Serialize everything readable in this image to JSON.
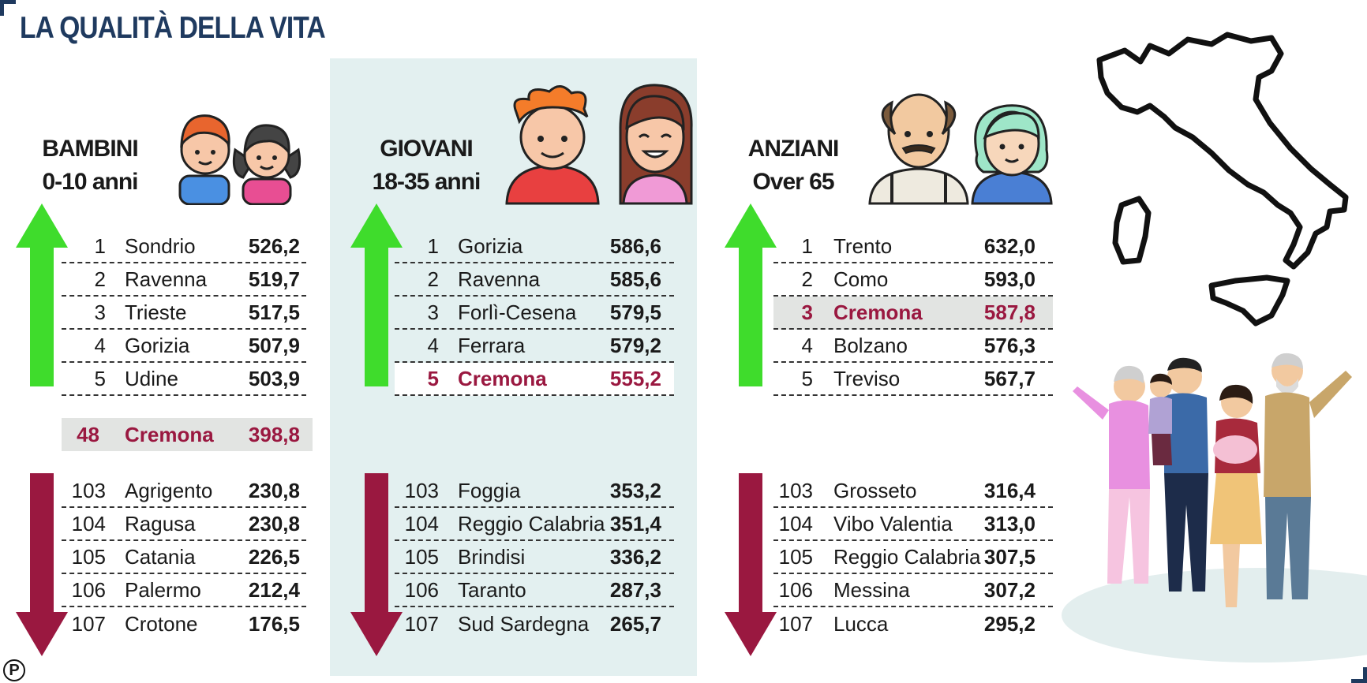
{
  "title": "LA QUALITÀ DELLA VITA",
  "colors": {
    "up_arrow": "#3fdc2c",
    "down_arrow": "#9a1840",
    "highlight_text": "#9a1840",
    "title": "#1f3a5f",
    "panel_bg": "#e3f0f0"
  },
  "icons": [
    "children-icon",
    "young-people-icon",
    "elderly-icon",
    "italy-map-icon",
    "family-illustration",
    "publisher-logo-icon"
  ],
  "sections": [
    {
      "title_line1": "BAMBINI",
      "title_line2": "0-10 anni",
      "top": [
        {
          "rank": "1",
          "city": "Sondrio",
          "value": "526,2"
        },
        {
          "rank": "2",
          "city": "Ravenna",
          "value": "519,7"
        },
        {
          "rank": "3",
          "city": "Trieste",
          "value": "517,5"
        },
        {
          "rank": "4",
          "city": "Gorizia",
          "value": "507,9"
        },
        {
          "rank": "5",
          "city": "Udine",
          "value": "503,9"
        }
      ],
      "cremona": {
        "rank": "48",
        "city": "Cremona",
        "value": "398,8"
      },
      "bottom": [
        {
          "rank": "103",
          "city": "Agrigento",
          "value": "230,8"
        },
        {
          "rank": "104",
          "city": "Ragusa",
          "value": "230,8"
        },
        {
          "rank": "105",
          "city": "Catania",
          "value": "226,5"
        },
        {
          "rank": "106",
          "city": "Palermo",
          "value": "212,4"
        },
        {
          "rank": "107",
          "city": "Crotone",
          "value": "176,5"
        }
      ]
    },
    {
      "title_line1": "GIOVANI",
      "title_line2": "18-35 anni",
      "top": [
        {
          "rank": "1",
          "city": "Gorizia",
          "value": "586,6"
        },
        {
          "rank": "2",
          "city": "Ravenna",
          "value": "585,6"
        },
        {
          "rank": "3",
          "city": "Forlì-Cesena",
          "value": "579,5"
        },
        {
          "rank": "4",
          "city": "Ferrara",
          "value": "579,2"
        },
        {
          "rank": "5",
          "city": "Cremona",
          "value": "555,2"
        }
      ],
      "bottom": [
        {
          "rank": "103",
          "city": "Foggia",
          "value": "353,2"
        },
        {
          "rank": "104",
          "city": "Reggio Calabria",
          "value": "351,4"
        },
        {
          "rank": "105",
          "city": "Brindisi",
          "value": "336,2"
        },
        {
          "rank": "106",
          "city": "Taranto",
          "value": "287,3"
        },
        {
          "rank": "107",
          "city": "Sud Sardegna",
          "value": "265,7"
        }
      ]
    },
    {
      "title_line1": "ANZIANI",
      "title_line2": "Over 65",
      "top": [
        {
          "rank": "1",
          "city": "Trento",
          "value": "632,0"
        },
        {
          "rank": "2",
          "city": "Como",
          "value": "593,0"
        },
        {
          "rank": "3",
          "city": "Cremona",
          "value": "587,8"
        },
        {
          "rank": "4",
          "city": "Bolzano",
          "value": "576,3"
        },
        {
          "rank": "5",
          "city": "Treviso",
          "value": "567,7"
        }
      ],
      "bottom": [
        {
          "rank": "103",
          "city": "Grosseto",
          "value": "316,4"
        },
        {
          "rank": "104",
          "city": "Vibo Valentia",
          "value": "313,0"
        },
        {
          "rank": "105",
          "city": "Reggio Calabria",
          "value": "307,5"
        },
        {
          "rank": "106",
          "city": "Messina",
          "value": "307,2"
        },
        {
          "rank": "107",
          "city": "Lucca",
          "value": "295,2"
        }
      ]
    }
  ],
  "logo_letter": "P"
}
